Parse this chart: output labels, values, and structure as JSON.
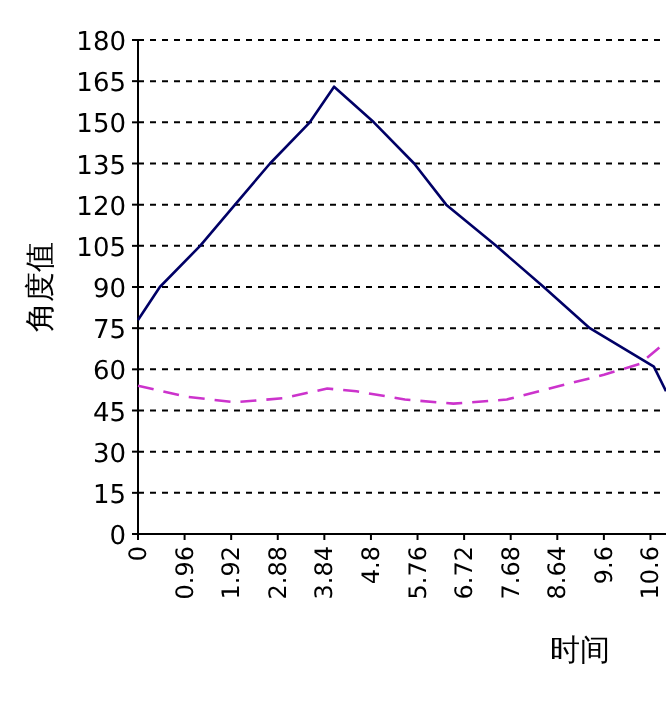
{
  "chart_data": {
    "type": "line",
    "xlabel": "时间",
    "ylabel": "角度值",
    "xlim": [
      0,
      10.88
    ],
    "ylim": [
      0,
      180
    ],
    "xticks": [
      0,
      0.96,
      1.92,
      2.88,
      3.84,
      4.8,
      5.76,
      6.72,
      7.68,
      8.64,
      9.6,
      {
        "value": 10.56,
        "label": "10.6"
      }
    ],
    "yticks": [
      0,
      15,
      30,
      45,
      60,
      75,
      90,
      105,
      120,
      135,
      150,
      165,
      180
    ],
    "grid": "y",
    "series": [
      {
        "color": "#000066",
        "line_style": "solid",
        "x": [
          0,
          0.45,
          1.28,
          2.0,
          2.72,
          3.54,
          4.04,
          4.86,
          5.69,
          6.35,
          7.38,
          8.36,
          9.31,
          10.63,
          10.88
        ],
        "values": [
          78,
          90,
          105,
          120,
          135,
          150,
          163,
          150,
          135,
          120,
          105,
          90,
          75,
          61,
          52
        ]
      },
      {
        "color": "#cc33cc",
        "line_style": "dashed",
        "x": [
          0,
          1.0,
          2.0,
          3.0,
          3.9,
          4.5,
          5.5,
          6.5,
          7.6,
          8.7,
          9.6,
          10.34,
          10.88
        ],
        "values": [
          54,
          50,
          48,
          49.5,
          53,
          52,
          49,
          47.5,
          49,
          54,
          58,
          62,
          70
        ]
      }
    ]
  }
}
